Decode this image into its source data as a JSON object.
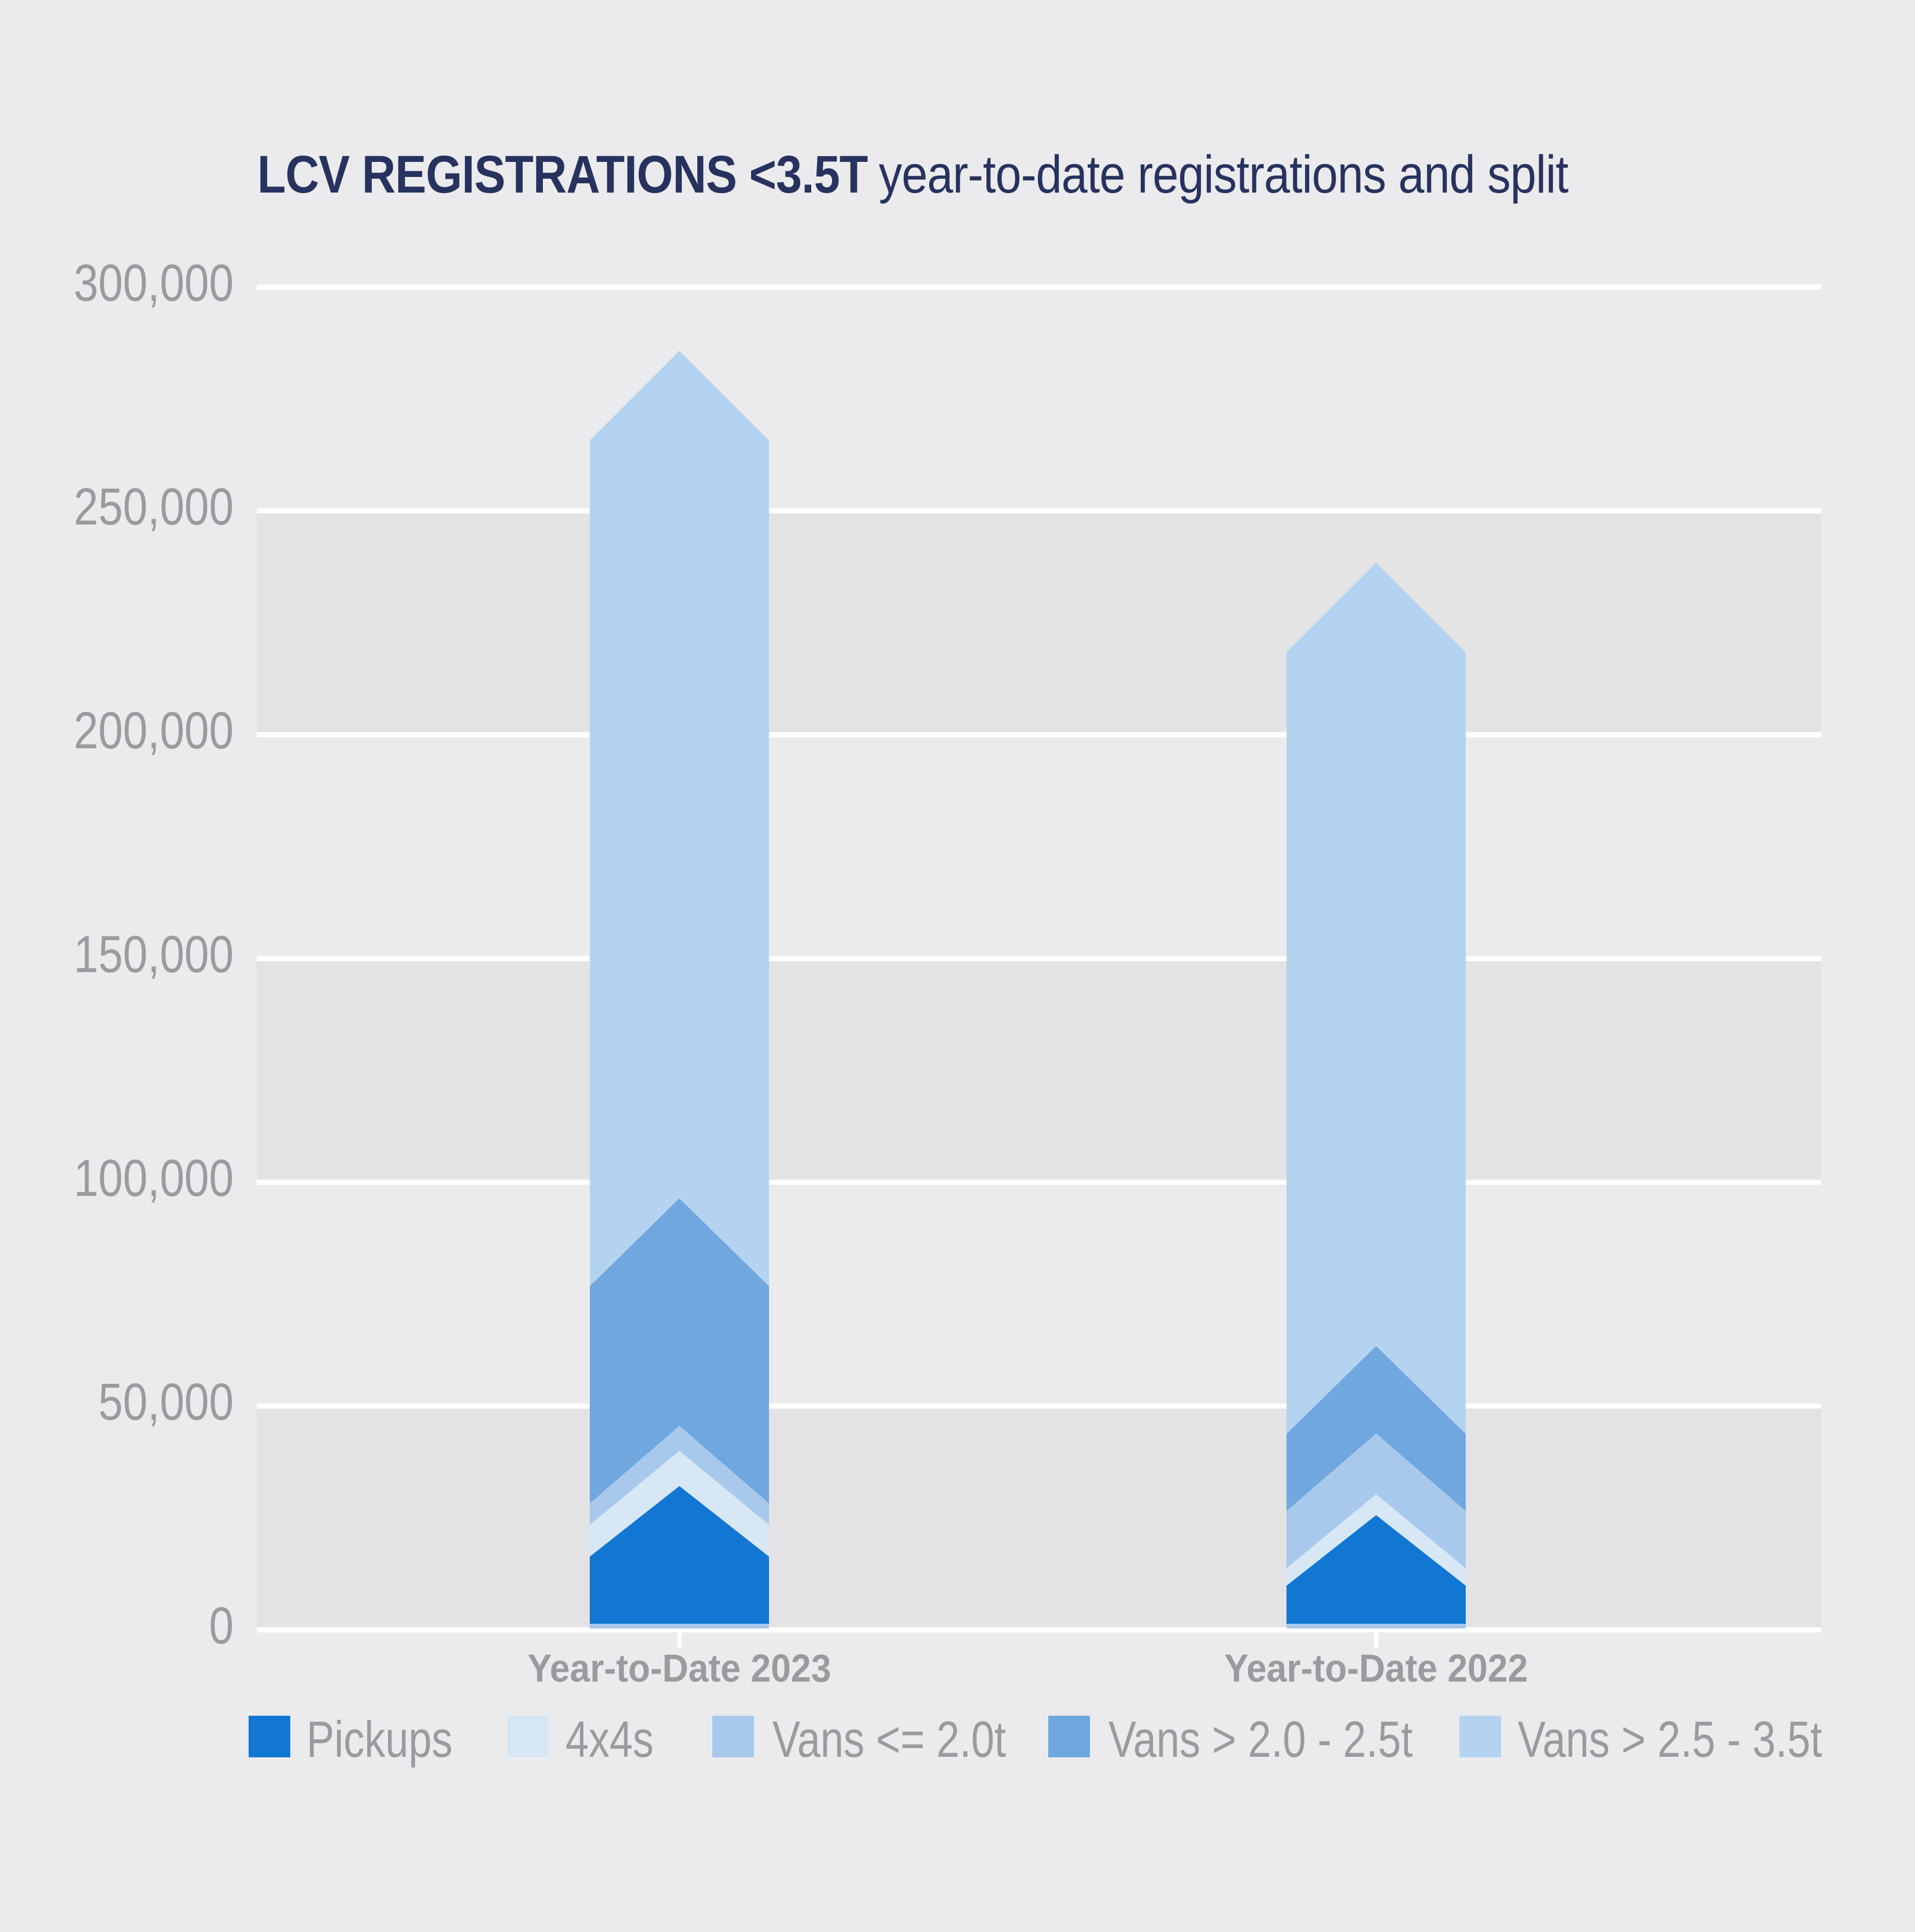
{
  "title": {
    "bold": "LCV REGISTRATIONS <3.5T",
    "regular": "year-to-date registrations and split"
  },
  "colors": {
    "background": "#ebebed",
    "band_shade": "#e3e3e5",
    "gridline": "#ffffff",
    "title_text": "#28325f",
    "axis_text": "#9b9b9f"
  },
  "chart_data": {
    "type": "bar",
    "subtype": "stacked-chevron-arrow-columns",
    "title": "LCV REGISTRATIONS <3.5T year-to-date registrations and split",
    "categories": [
      "Year-to-Date 2023",
      "Year-to-Date 2022"
    ],
    "series": [
      {
        "name": "Pickups",
        "color": "#1276d3",
        "values": [
          16300,
          9800
        ]
      },
      {
        "name": "4x4s",
        "color": "#d8e7f6",
        "values": [
          7100,
          3900
        ]
      },
      {
        "name": "Vans <= 2.0t",
        "color": "#a8c9ec",
        "values": [
          4800,
          12800
        ]
      },
      {
        "name": "Vans > 2.0 - 2.5t",
        "color": "#70a7de",
        "values": [
          48500,
          17200
        ]
      },
      {
        "name": "Vans > 2.5 - 3.5t",
        "color": "#b4d3f0",
        "values": [
          189000,
          174600
        ]
      }
    ],
    "totals": [
      265700,
      218300
    ],
    "xlabel": "",
    "ylabel": "",
    "ylim": [
      0,
      300000
    ],
    "y_tick_interval": 50000,
    "y_tick_labels": [
      "0",
      "50,000",
      "100,000",
      "150,000",
      "200,000",
      "250,000",
      "300,000"
    ],
    "grid": "horizontal white gridlines with alternating shaded bands (0-50k, 100-150k, 200-250k shaded)",
    "legend_position": "bottom"
  }
}
